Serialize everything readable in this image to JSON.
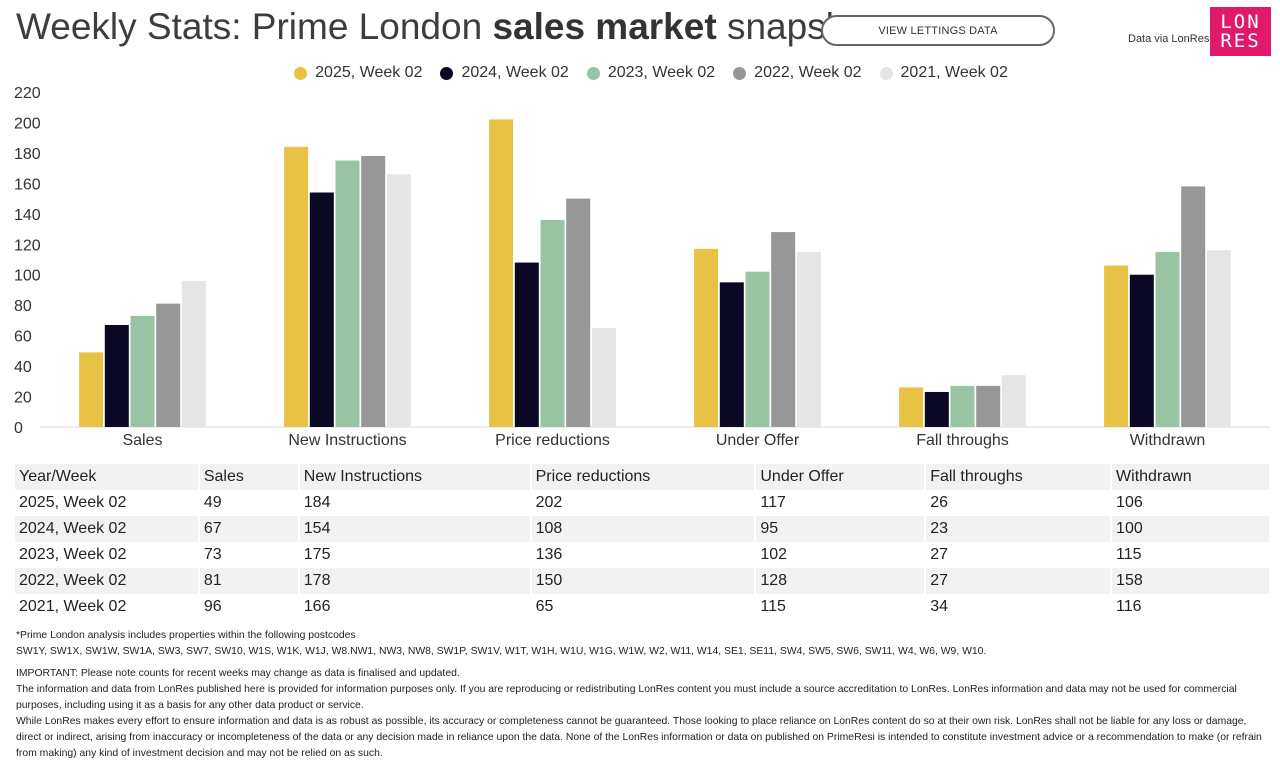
{
  "header": {
    "title_part1": "Weekly Stats: Prime London ",
    "title_bold": "sales market",
    "title_part2": " snapshot",
    "button_label": "VIEW LETTINGS DATA",
    "source_text": "Data via LonRes",
    "logo_line1": "LON",
    "logo_line2": "RES",
    "logo_color": "#e0196b"
  },
  "chart_data": {
    "type": "bar",
    "categories": [
      "Sales",
      "New Instructions",
      "Price reductions",
      "Under Offer",
      "Fall throughs",
      "Withdrawn"
    ],
    "series": [
      {
        "name": "2025, Week 02",
        "color": "#e8c244",
        "values": [
          49,
          184,
          202,
          117,
          26,
          106
        ]
      },
      {
        "name": "2024, Week 02",
        "color": "#0b0826",
        "values": [
          67,
          154,
          108,
          95,
          23,
          100
        ]
      },
      {
        "name": "2023, Week 02",
        "color": "#98c4a4",
        "values": [
          73,
          175,
          136,
          102,
          27,
          115
        ]
      },
      {
        "name": "2022, Week 02",
        "color": "#979797",
        "values": [
          81,
          178,
          150,
          128,
          27,
          158
        ]
      },
      {
        "name": "2021, Week 02",
        "color": "#e5e5e5",
        "values": [
          96,
          166,
          65,
          115,
          34,
          116
        ]
      }
    ],
    "yticks": [
      "0",
      "20",
      "40",
      "60",
      "80",
      "100",
      "120",
      "140",
      "160",
      "180",
      "200",
      "220"
    ],
    "ylim": [
      0,
      220
    ],
    "title": "",
    "xlabel": "",
    "ylabel": ""
  },
  "table": {
    "headers": [
      "Year/Week",
      "Sales",
      "New Instructions",
      "Price reductions",
      "Under Offer",
      "Fall throughs",
      "Withdrawn"
    ],
    "rows": [
      [
        "2025, Week 02",
        "49",
        "184",
        "202",
        "117",
        "26",
        "106"
      ],
      [
        "2024, Week 02",
        "67",
        "154",
        "108",
        "95",
        "23",
        "100"
      ],
      [
        "2023, Week 02",
        "73",
        "175",
        "136",
        "102",
        "27",
        "115"
      ],
      [
        "2022, Week 02",
        "81",
        "178",
        "150",
        "128",
        "27",
        "158"
      ],
      [
        "2021, Week 02",
        "96",
        "166",
        "65",
        "115",
        "34",
        "116"
      ]
    ]
  },
  "notes": {
    "postcode_intro": "*Prime London analysis includes properties within the following postcodes",
    "postcodes": "SW1Y, SW1X, SW1W, SW1A, SW3, SW7, SW10, W1S, W1K, W1J, W8.NW1, NW3, NW8, SW1P, SW1V, W1T, W1H, W1U, W1G, W1W, W2, W11, W14, SE1, SE11, SW4, SW5, SW6, SW11, W4, W6, W9, W10.",
    "important": "IMPORTANT: Please note counts for recent weeks may change as data is finalised and updated.",
    "info": "The information and data from LonRes published here is provided for information purposes only. If you are reproducing or redistributing LonRes content you must include a source accreditation to LonRes. LonRes information and data may not be used for commercial purposes, including using it as a basis for any other data product or service.",
    "disclaimer": "While LonRes makes every effort to ensure information and data is as robust as possible, its accuracy or completeness cannot be guaranteed. Those looking to place reliance on LonRes content do so at their own risk. LonRes shall not be liable for any loss or damage, direct or indirect, arising from inaccuracy or incompleteness of the data or any decision made in reliance upon the data. None of the LonRes information or data on published on PrimeResi is intended to constitute investment advice or a recommendation to make (or refrain from making) any kind of investment decision and may not be relied on as such."
  }
}
